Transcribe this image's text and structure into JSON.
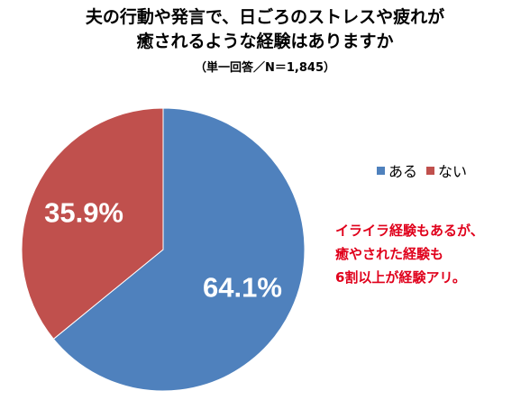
{
  "title_lines": [
    "夫の行動や発言で、日ごろのストレスや疲れが",
    "癒されるような経験はありますか"
  ],
  "subtitle": "（単一回答／N＝1,845）",
  "annotation_lines": [
    "イライラ経験もあるが、",
    "癒やされた経験も",
    "6割以上が経験アリ。"
  ],
  "colors": {
    "aru": "#4f81bd",
    "nai": "#c0504d",
    "annotation": "#e0001b"
  },
  "chart_data": {
    "type": "pie",
    "title": "夫の行動や発言で、日ごろのストレスや疲れが癒されるような経験はありますか",
    "subtitle": "（単一回答／N＝1,845）",
    "categories": [
      "ある",
      "ない"
    ],
    "values": [
      64.1,
      35.9
    ],
    "labels": [
      "64.1%",
      "35.9%"
    ],
    "colors": [
      "#4f81bd",
      "#c0504d"
    ],
    "legend_position": "right",
    "start_angle": "12 o'clock",
    "direction": "clockwise"
  }
}
